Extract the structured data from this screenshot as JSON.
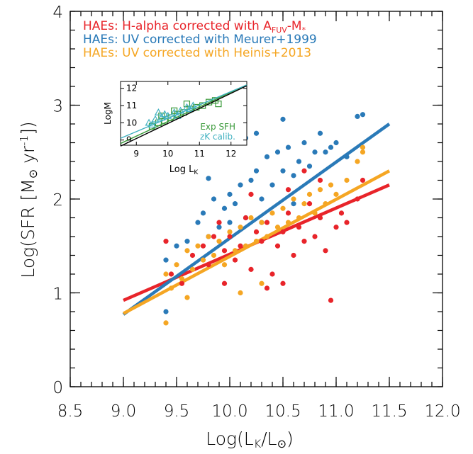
{
  "chart_data": [
    {
      "type": "scatter",
      "xlabel": "Log(L_K/L_⊙)",
      "ylabel": "Log(SFR [M_⊙ yr^-1])",
      "xlim": [
        8.5,
        12.0
      ],
      "ylim": [
        0,
        4
      ],
      "x_ticks": [
        "8.5",
        "9.0",
        "9.5",
        "10.0",
        "10.5",
        "11.0",
        "11.5",
        "12.0"
      ],
      "y_ticks": [
        "0",
        "1",
        "2",
        "3",
        "4"
      ],
      "legend_position": "top-left",
      "colors": {
        "red": "#e8242a",
        "blue": "#2a7ab8",
        "orange": "#f5a623"
      },
      "series": [
        {
          "name": "HAEs: H-alpha corrected with A_FUV-M*",
          "color": "#e8242a",
          "fit": {
            "x": [
              9.0,
              11.5
            ],
            "y": [
              0.92,
              2.15
            ]
          },
          "points": [
            [
              9.4,
              1.55
            ],
            [
              9.45,
              1.2
            ],
            [
              9.55,
              1.1
            ],
            [
              9.65,
              1.4
            ],
            [
              9.75,
              1.5
            ],
            [
              9.8,
              1.3
            ],
            [
              9.85,
              1.6
            ],
            [
              9.9,
              1.75
            ],
            [
              9.95,
              1.45
            ],
            [
              10.0,
              1.6
            ],
            [
              10.05,
              1.35
            ],
            [
              10.1,
              1.5
            ],
            [
              10.15,
              1.8
            ],
            [
              10.2,
              1.25
            ],
            [
              10.25,
              1.65
            ],
            [
              10.3,
              1.55
            ],
            [
              10.35,
              1.75
            ],
            [
              10.4,
              1.2
            ],
            [
              10.45,
              1.5
            ],
            [
              10.5,
              1.65
            ],
            [
              10.55,
              1.85
            ],
            [
              10.6,
              1.4
            ],
            [
              10.65,
              1.7
            ],
            [
              10.7,
              1.55
            ],
            [
              10.75,
              1.95
            ],
            [
              10.8,
              1.6
            ],
            [
              10.85,
              1.8
            ],
            [
              10.9,
              1.45
            ],
            [
              10.95,
              0.92
            ],
            [
              11.0,
              1.7
            ],
            [
              11.05,
              1.85
            ],
            [
              11.1,
              1.75
            ],
            [
              11.2,
              2.0
            ],
            [
              11.25,
              2.2
            ],
            [
              10.35,
              1.05
            ],
            [
              10.5,
              1.1
            ],
            [
              9.95,
              1.1
            ],
            [
              10.7,
              2.3
            ],
            [
              10.55,
              2.1
            ],
            [
              10.2,
              2.05
            ],
            [
              10.85,
              2.2
            ]
          ]
        },
        {
          "name": "HAEs: UV corrected with Meurer+1999",
          "color": "#2a7ab8",
          "fit": {
            "x": [
              9.0,
              11.5
            ],
            "y": [
              0.77,
              2.8
            ]
          },
          "points": [
            [
              9.4,
              0.8
            ],
            [
              9.4,
              1.35
            ],
            [
              9.5,
              1.5
            ],
            [
              9.6,
              1.55
            ],
            [
              9.7,
              1.75
            ],
            [
              9.75,
              1.85
            ],
            [
              9.8,
              1.6
            ],
            [
              9.85,
              2.0
            ],
            [
              9.9,
              1.7
            ],
            [
              9.95,
              1.9
            ],
            [
              10.0,
              2.05
            ],
            [
              10.0,
              1.75
            ],
            [
              10.05,
              1.95
            ],
            [
              10.1,
              2.15
            ],
            [
              10.15,
              1.8
            ],
            [
              10.2,
              2.2
            ],
            [
              10.25,
              2.3
            ],
            [
              10.3,
              2.0
            ],
            [
              10.35,
              2.45
            ],
            [
              10.4,
              2.15
            ],
            [
              10.45,
              2.5
            ],
            [
              10.5,
              2.3
            ],
            [
              10.55,
              2.55
            ],
            [
              10.6,
              2.25
            ],
            [
              10.65,
              2.4
            ],
            [
              10.7,
              2.6
            ],
            [
              10.75,
              2.35
            ],
            [
              10.8,
              2.5
            ],
            [
              10.85,
              2.7
            ],
            [
              10.9,
              2.5
            ],
            [
              10.95,
              2.55
            ],
            [
              11.0,
              2.6
            ],
            [
              11.1,
              2.45
            ],
            [
              11.2,
              2.88
            ],
            [
              11.25,
              2.9
            ],
            [
              9.8,
              2.22
            ],
            [
              10.15,
              2.65
            ],
            [
              10.25,
              2.7
            ],
            [
              10.5,
              2.85
            ],
            [
              10.3,
              1.75
            ],
            [
              10.6,
              1.95
            ]
          ]
        },
        {
          "name": "HAEs: UV corrected with Heinis+2013",
          "color": "#f5a623",
          "fit": {
            "x": [
              9.0,
              11.5
            ],
            "y": [
              0.78,
              2.3
            ]
          },
          "points": [
            [
              9.4,
              0.68
            ],
            [
              9.4,
              1.2
            ],
            [
              9.45,
              1.05
            ],
            [
              9.5,
              1.3
            ],
            [
              9.55,
              1.15
            ],
            [
              9.6,
              1.45
            ],
            [
              9.65,
              1.25
            ],
            [
              9.7,
              1.5
            ],
            [
              9.75,
              1.35
            ],
            [
              9.8,
              1.6
            ],
            [
              9.85,
              1.4
            ],
            [
              9.9,
              1.55
            ],
            [
              9.95,
              1.3
            ],
            [
              10.0,
              1.65
            ],
            [
              10.05,
              1.45
            ],
            [
              10.1,
              1.7
            ],
            [
              10.15,
              1.5
            ],
            [
              10.2,
              1.8
            ],
            [
              10.25,
              1.55
            ],
            [
              10.3,
              1.75
            ],
            [
              10.35,
              1.6
            ],
            [
              10.4,
              1.85
            ],
            [
              10.45,
              1.7
            ],
            [
              10.5,
              1.9
            ],
            [
              10.55,
              1.75
            ],
            [
              10.6,
              2.0
            ],
            [
              10.65,
              1.8
            ],
            [
              10.7,
              1.95
            ],
            [
              10.75,
              2.05
            ],
            [
              10.8,
              1.85
            ],
            [
              10.85,
              2.1
            ],
            [
              10.9,
              1.95
            ],
            [
              10.95,
              2.15
            ],
            [
              11.0,
              2.05
            ],
            [
              11.1,
              2.2
            ],
            [
              11.2,
              2.4
            ],
            [
              11.25,
              2.5
            ],
            [
              11.25,
              2.55
            ],
            [
              9.6,
              0.95
            ],
            [
              10.1,
              1.0
            ],
            [
              10.3,
              1.1
            ]
          ]
        }
      ]
    },
    {
      "type": "scatter",
      "xlabel": "Log L_K",
      "ylabel": "LogM",
      "xlim": [
        8.5,
        12.5
      ],
      "ylim": [
        8.7,
        12.4
      ],
      "x_ticks": [
        "9",
        "10",
        "11",
        "12"
      ],
      "y_ticks": [
        "9",
        "10",
        "11",
        "12"
      ],
      "annotations": [
        "Exp SFH",
        "zK calib."
      ],
      "series": [
        {
          "name": "Exp SFH",
          "marker": "square",
          "color": "#3a9a3a",
          "fit": {
            "x": [
              8.5,
              12.5
            ],
            "y": [
              8.8,
              12.2
            ]
          },
          "points": [
            [
              9.5,
              9.8
            ],
            [
              9.7,
              10.0
            ],
            [
              9.9,
              10.1
            ],
            [
              10.1,
              10.3
            ],
            [
              10.3,
              10.5
            ],
            [
              10.5,
              10.6
            ],
            [
              10.7,
              10.8
            ],
            [
              10.9,
              10.9
            ],
            [
              11.1,
              11.0
            ],
            [
              11.3,
              11.2
            ],
            [
              11.5,
              11.3
            ],
            [
              10.2,
              10.7
            ],
            [
              10.6,
              11.1
            ],
            [
              11.6,
              11.1
            ],
            [
              9.8,
              10.4
            ]
          ]
        },
        {
          "name": "zK calib.",
          "marker": "triangle",
          "color": "#3fb0c0",
          "fit": {
            "x": [
              8.5,
              12.5
            ],
            "y": [
              9.1,
              12.2
            ]
          },
          "points": [
            [
              9.4,
              10.0
            ],
            [
              9.6,
              10.2
            ],
            [
              9.8,
              10.3
            ],
            [
              10.0,
              10.4
            ],
            [
              10.2,
              10.6
            ],
            [
              10.4,
              10.7
            ],
            [
              10.6,
              10.9
            ],
            [
              10.8,
              11.0
            ],
            [
              9.5,
              9.9
            ],
            [
              9.9,
              10.5
            ],
            [
              10.3,
              10.4
            ],
            [
              10.7,
              10.8
            ],
            [
              9.7,
              10.6
            ]
          ]
        },
        {
          "name": "",
          "marker": "none",
          "color": "#000000",
          "fit": {
            "x": [
              8.5,
              12.5
            ],
            "y": [
              8.65,
              12.15
            ]
          },
          "points": []
        }
      ]
    }
  ]
}
